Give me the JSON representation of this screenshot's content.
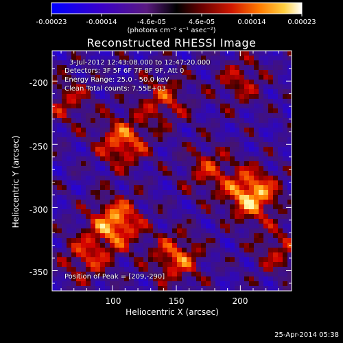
{
  "colorbar": {
    "ticks": [
      "-0.00023",
      "-0.00014",
      "-4.6e-05",
      "4.6e-05",
      "0.00014",
      "0.00023"
    ],
    "units": "(photons cm⁻² s⁻¹ asec⁻²)"
  },
  "footer": {
    "date": "25-Apr-2014 05:38"
  },
  "chart_data": {
    "type": "heatmap",
    "title": "Reconstructed RHESSI Image",
    "xlabel": "Heliocentric X (arcsec)",
    "ylabel": "Heliocentric Y (arcsec)",
    "xlim": [
      53,
      240
    ],
    "ylim": [
      -366,
      -176
    ],
    "xticks": [
      100,
      150,
      200
    ],
    "yticks": [
      -200,
      -250,
      -300,
      -350
    ],
    "colorbar_range": [
      -0.00023,
      0.00023
    ],
    "annotations": [
      "3-Jul-2012 12:43:08.000 to 12:47:20.000",
      "Detectors: 3F 5F 6F 7F 8F 9F, Att 0",
      "Energy Range: 25.0 - 50.0 keV",
      "Clean    Total counts: 7.55E+03",
      "Position of Peak = [209,-290]"
    ],
    "peak_position": [
      209,
      -290
    ],
    "emission_sources": [
      {
        "x": 209,
        "y": -290,
        "intensity": 1.0
      },
      {
        "x": 103,
        "y": -312,
        "intensity": 0.9
      },
      {
        "x": 108,
        "y": -248,
        "intensity": 0.75
      },
      {
        "x": 150,
        "y": -340,
        "intensity": 0.7
      },
      {
        "x": 80,
        "y": -340,
        "intensity": 0.55
      },
      {
        "x": 140,
        "y": -215,
        "intensity": 0.55
      },
      {
        "x": 200,
        "y": -200,
        "intensity": 0.45
      },
      {
        "x": 175,
        "y": -270,
        "intensity": 0.5
      },
      {
        "x": 230,
        "y": -335,
        "intensity": 0.45
      },
      {
        "x": 65,
        "y": -215,
        "intensity": 0.45
      }
    ]
  }
}
